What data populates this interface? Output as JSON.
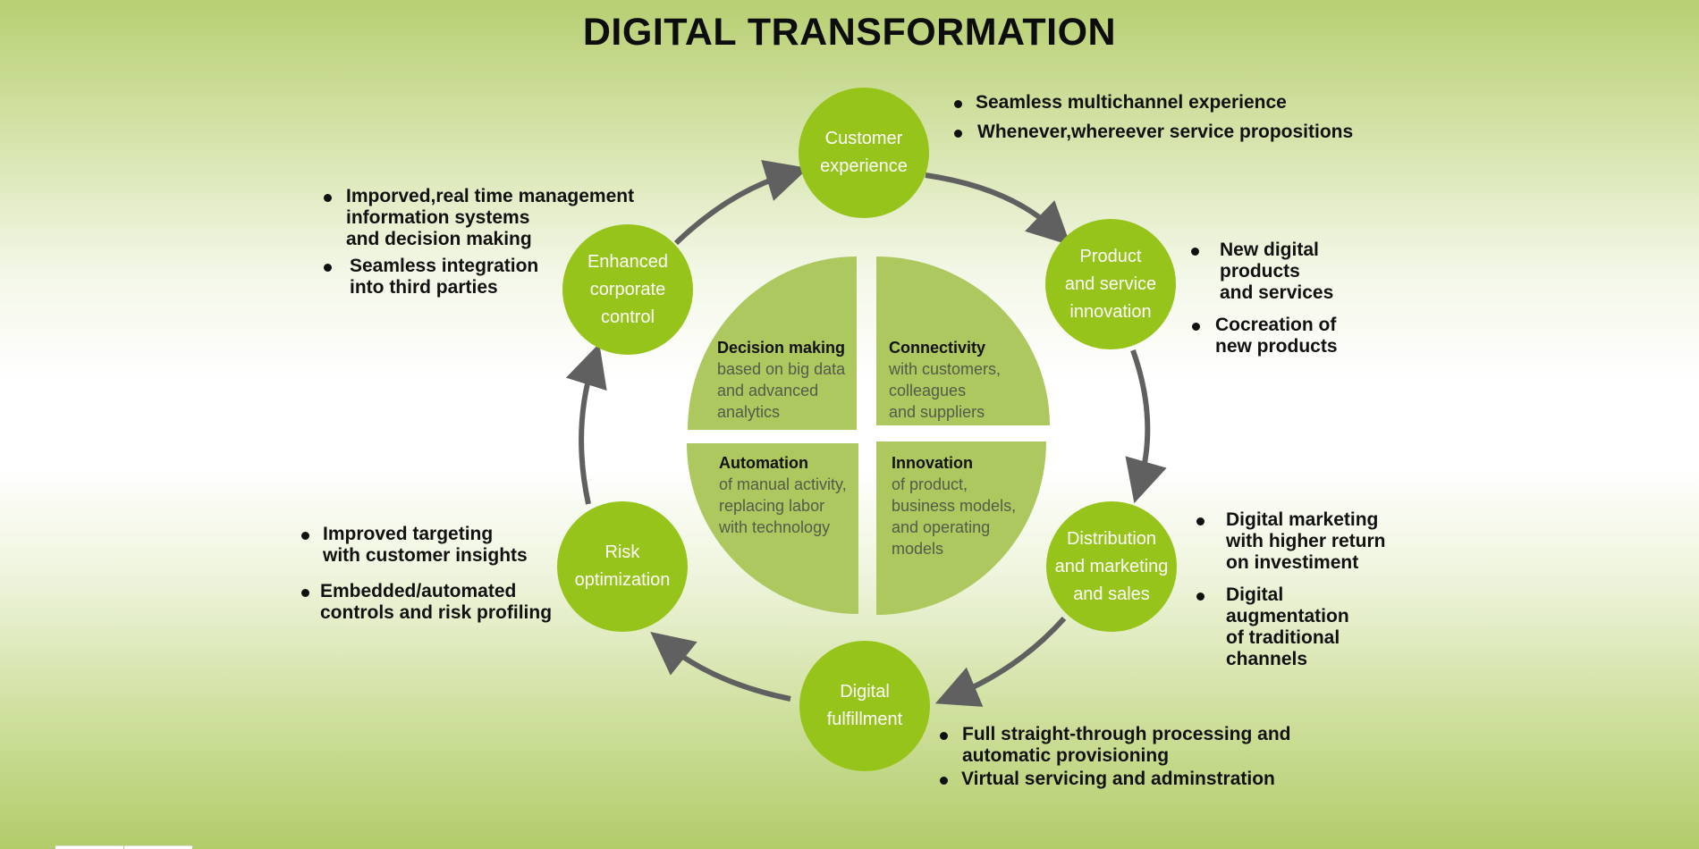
{
  "title": "DIGITAL TRANSFORMATION",
  "colors": {
    "node": "#97c41a",
    "quadrant": "#adc85f",
    "arrow": "#606060"
  },
  "nodes": {
    "customer_experience": "Customer\nexperience",
    "product_innovation": "Product\nand service\ninnovation",
    "distribution": "Distribution\nand marketing\nand sales",
    "digital_fulfillment": "Digital\nfulfillment",
    "risk_optimization": "Risk\noptimization",
    "enhanced_control": "Enhanced\ncorporate\ncontrol"
  },
  "quadrants": {
    "decision_making": {
      "heading": "Decision making",
      "body": "based on big data\nand advanced\nanalytics"
    },
    "connectivity": {
      "heading": "Connectivity",
      "body": "with customers,\ncolleagues\nand suppliers"
    },
    "automation": {
      "heading": "Automation",
      "body": "of manual activity,\nreplacing labor\nwith technology"
    },
    "innovation": {
      "heading": "Innovation",
      "body": "of product,\nbusiness models,\nand operating\nmodels"
    }
  },
  "bullets": {
    "customer_experience": [
      "Seamless multichannel experience",
      "Whenever,whereever service propositions"
    ],
    "product_innovation": [
      "New digital\nproducts\nand services",
      "Cocreation of\nnew products"
    ],
    "distribution": [
      "Digital marketing\nwith higher return\non investiment",
      "Digital\naugmentation\nof traditional\nchannels"
    ],
    "digital_fulfillment": [
      "Full straight-through processing and\nautomatic provisioning",
      "Virtual servicing and adminstration"
    ],
    "risk_optimization": [
      "Improved targeting\nwith customer insights",
      "Embedded/automated\ncontrols and risk profiling"
    ],
    "enhanced_control": [
      "Imporved,real time management\ninformation systems\nand decision making",
      "Seamless integration\ninto third parties"
    ]
  }
}
